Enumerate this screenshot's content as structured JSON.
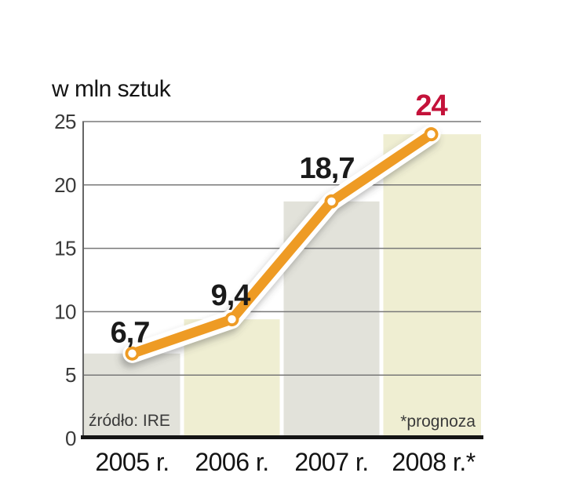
{
  "chart_data": {
    "type": "line",
    "title": "w mln sztuk",
    "categories": [
      "2005 r.",
      "2006 r.",
      "2007 r.",
      "2008 r.*"
    ],
    "values": [
      6.7,
      9.4,
      18.7,
      24
    ],
    "value_labels": [
      "6,7",
      "9,4",
      "18,7",
      "24"
    ],
    "ylim": [
      0,
      25
    ],
    "yticks": [
      0,
      5,
      10,
      15,
      20,
      25
    ],
    "ytick_labels": [
      "0",
      "5",
      "10",
      "15",
      "20",
      "25"
    ],
    "grid": true,
    "legend": "none",
    "source": "źródło: IRE",
    "footnote": "*prognoza",
    "highlight_last_label": true,
    "colors": {
      "line": "#ee9b24",
      "line_outline": "#ffffff",
      "marker_dot": "#ffffff",
      "band_gray": "#e2e2da",
      "band_cream": "#efeed2",
      "gridline": "#787878",
      "spine": "#666666",
      "axis": "#141414",
      "value_label": "#1a1a1a",
      "value_label_highlight": "#c4123a",
      "tick_label": "#3a3a3a",
      "category_label": "#141414",
      "note_text": "#3a3a3a",
      "background": "#ffffff"
    }
  }
}
